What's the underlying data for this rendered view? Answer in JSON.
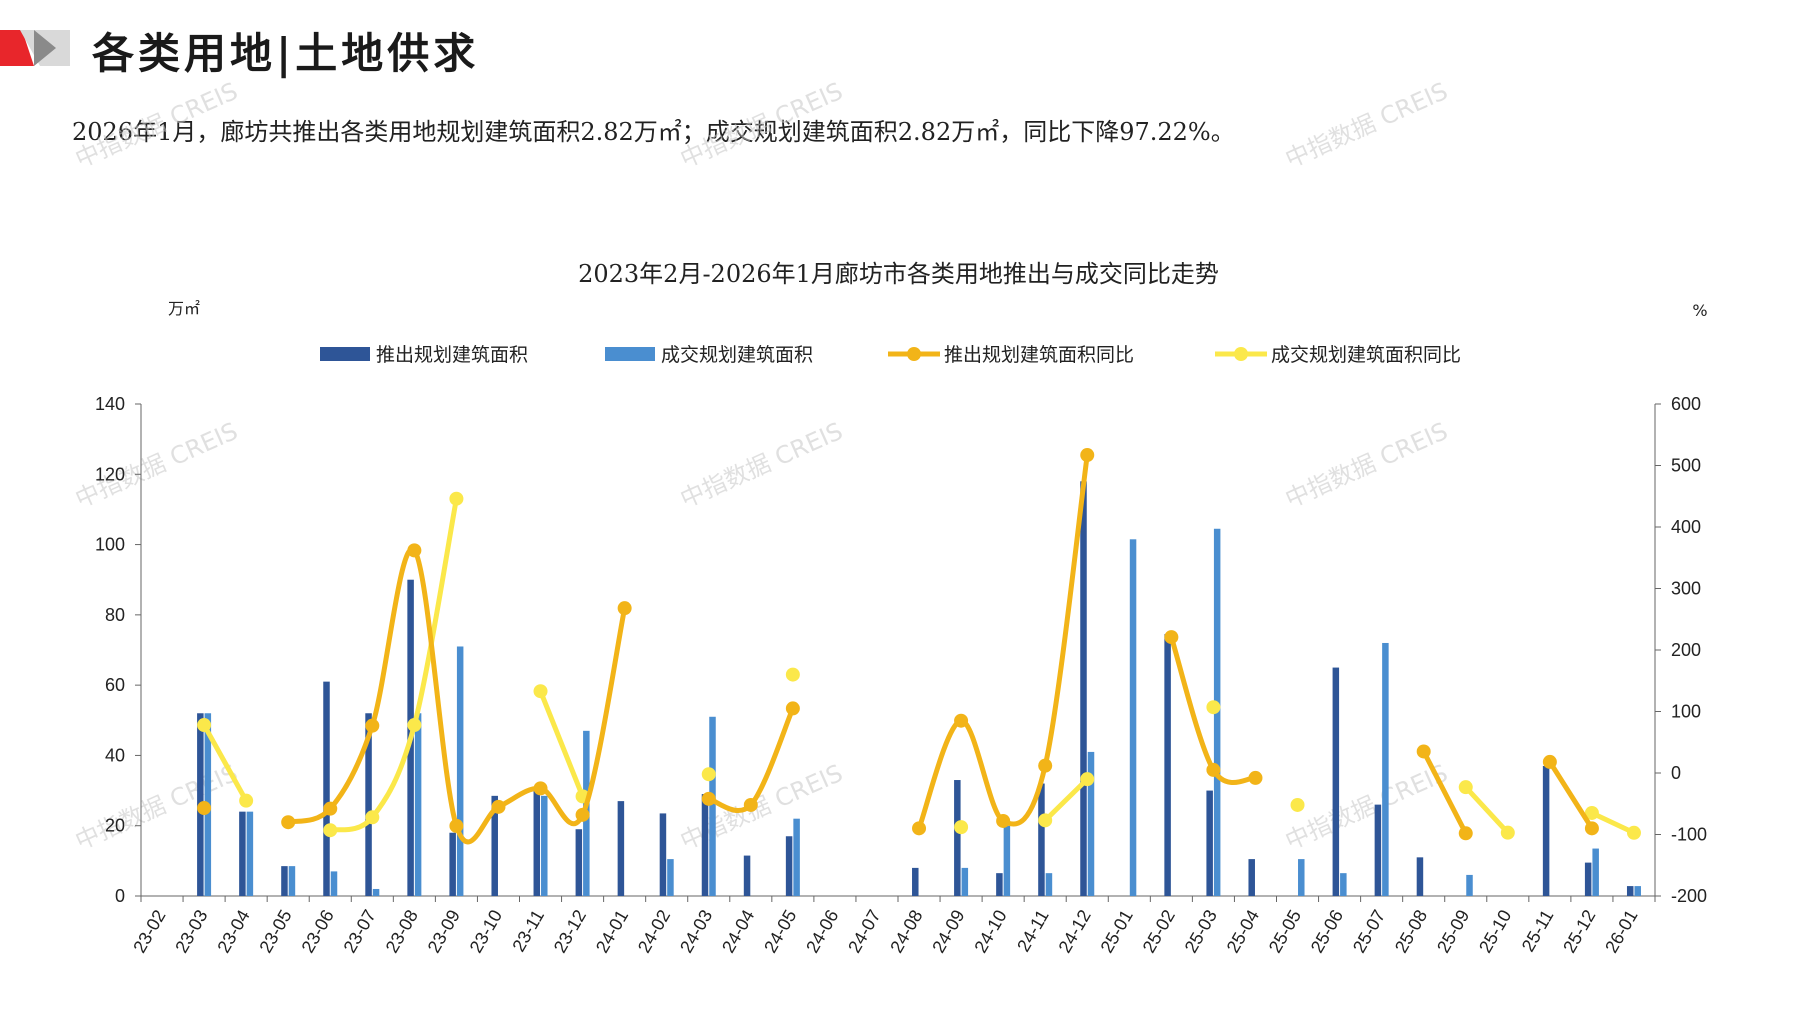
{
  "header": {
    "title": "各类用地|土地供求",
    "summary": "2026年1月，廊坊共推出各类用地规划建筑面积2.82万㎡；成交规划建筑面积2.82万㎡，同比下降97.22%。",
    "accent_red": "#e8262b",
    "accent_gray": "#8a8a8a"
  },
  "watermark": "中指数据 CREIS",
  "chart_data": {
    "type": "bar",
    "title": "2023年2月-2026年1月廊坊市各类用地推出与成交同比走势",
    "y_left_unit": "万㎡",
    "y_right_unit": "%",
    "y_left_range": [
      0,
      140
    ],
    "y_left_ticks": [
      "0",
      "20",
      "40",
      "60",
      "80",
      "100",
      "120",
      "140"
    ],
    "y_right_range": [
      -200,
      600
    ],
    "y_right_ticks": [
      "-200",
      "-100",
      "0",
      "100",
      "200",
      "300",
      "400",
      "500",
      "600"
    ],
    "legend_position": "top",
    "grid": false,
    "categories": [
      "23-02",
      "23-03",
      "23-04",
      "23-05",
      "23-06",
      "23-07",
      "23-08",
      "23-09",
      "23-10",
      "23-11",
      "23-12",
      "24-01",
      "24-02",
      "24-03",
      "24-04",
      "24-05",
      "24-06",
      "24-07",
      "24-08",
      "24-09",
      "24-10",
      "24-11",
      "24-12",
      "25-01",
      "25-02",
      "25-03",
      "25-04",
      "25-05",
      "25-06",
      "25-07",
      "25-08",
      "25-09",
      "25-10",
      "25-11",
      "25-12",
      "26-01"
    ],
    "series": [
      {
        "name": "推出规划建筑面积",
        "kind": "bar",
        "axis": "left",
        "color": "#2e5597",
        "values": [
          0,
          52,
          24,
          8.5,
          61,
          52,
          90,
          18,
          28.5,
          30,
          19,
          27,
          23.5,
          29,
          11.5,
          17,
          0,
          0,
          8,
          33,
          6.5,
          32,
          118,
          0,
          74.5,
          30,
          10.5,
          0,
          65,
          26,
          11,
          0,
          0,
          37,
          9.5,
          2.82
        ]
      },
      {
        "name": "成交规划建筑面积",
        "kind": "bar",
        "axis": "left",
        "color": "#4a8ed0",
        "values": [
          0,
          52,
          24,
          8.5,
          7,
          2,
          52,
          71,
          0,
          28.5,
          47,
          0,
          10.5,
          51,
          0,
          22,
          0,
          0,
          0,
          8,
          20,
          6.5,
          41,
          101.5,
          0,
          104.5,
          0,
          10.5,
          6.5,
          72,
          0,
          6,
          0,
          0,
          13.5,
          2.82
        ]
      },
      {
        "name": "推出规划建筑面积同比",
        "kind": "line",
        "axis": "right",
        "color": "#f2b418",
        "values": [
          null,
          -57,
          null,
          -80,
          -58,
          77,
          362,
          -86,
          -55,
          -25,
          -68,
          268,
          null,
          -42,
          -52,
          105,
          null,
          null,
          -90,
          85,
          -78,
          12,
          517,
          null,
          221,
          5,
          -8,
          null,
          null,
          null,
          35,
          -98,
          null,
          18,
          -90,
          null
        ]
      },
      {
        "name": "成交规划建筑面积同比",
        "kind": "line",
        "axis": "right",
        "color": "#fbe84a",
        "values": [
          null,
          78,
          -45,
          null,
          -93,
          -72,
          78,
          446,
          null,
          133,
          -38,
          null,
          null,
          -2,
          null,
          160,
          null,
          null,
          null,
          -88,
          null,
          -77,
          -10,
          null,
          null,
          107,
          null,
          -52,
          null,
          null,
          null,
          -23,
          -97,
          null,
          -65,
          -97.22
        ]
      }
    ]
  }
}
